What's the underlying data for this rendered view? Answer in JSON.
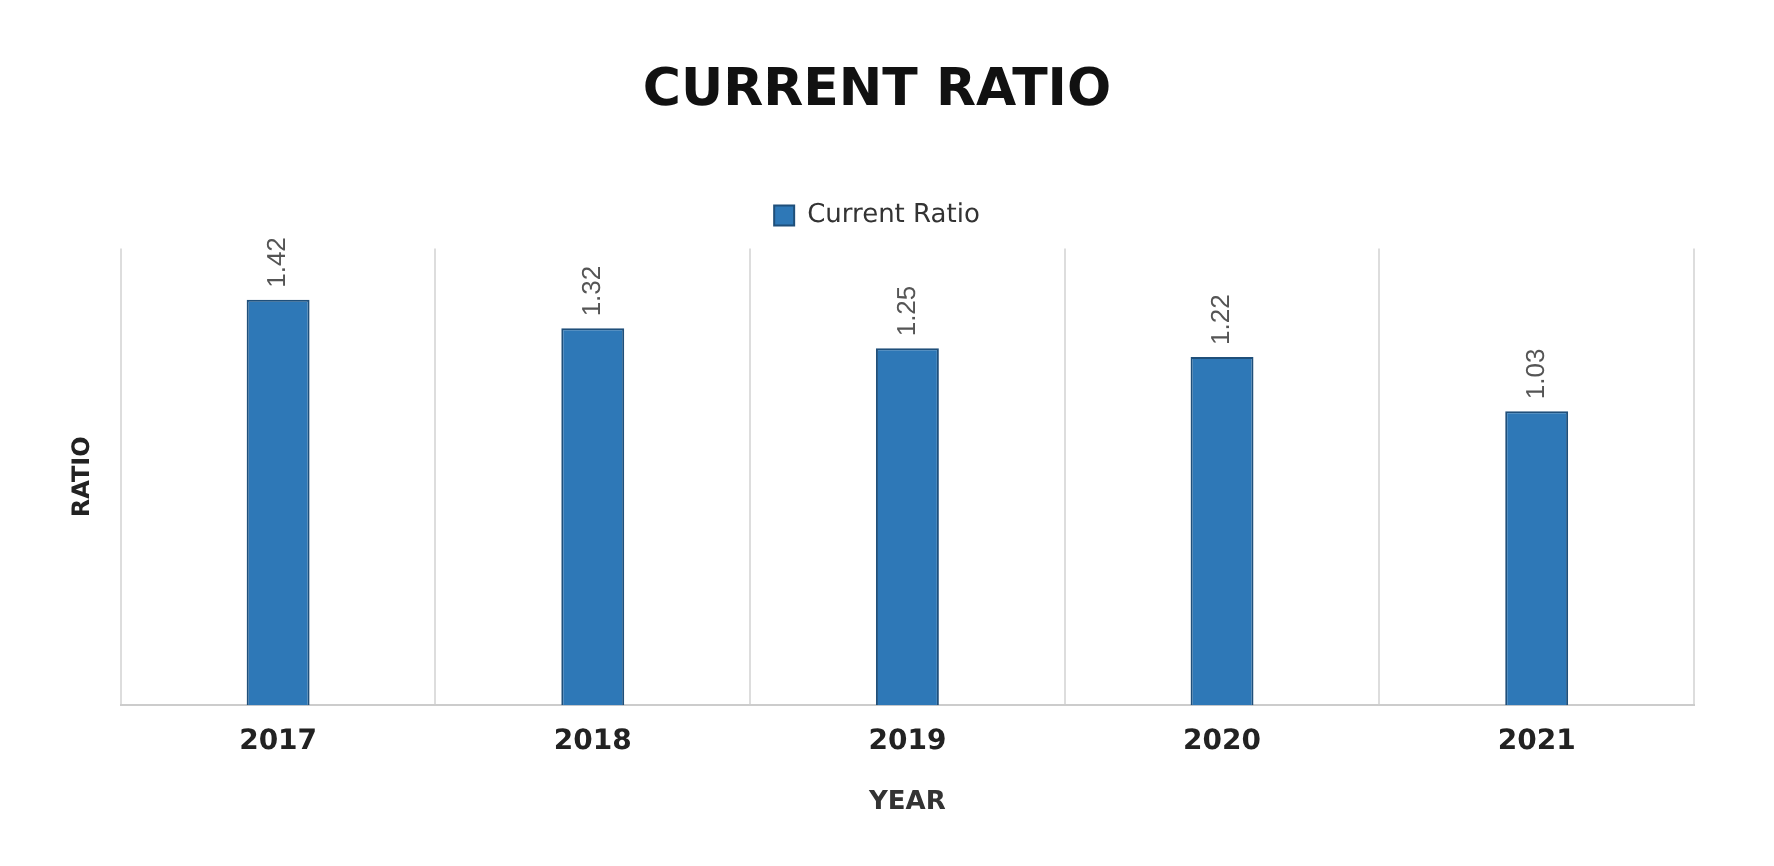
{
  "chart_data": {
    "type": "bar",
    "title": "CURRENT RATIO",
    "xlabel": "YEAR",
    "ylabel": "RATIO",
    "categories": [
      "2017",
      "2018",
      "2019",
      "2020",
      "2021"
    ],
    "series": [
      {
        "name": "Current Ratio",
        "color": "#2e78b7",
        "values": [
          1.42,
          1.32,
          1.25,
          1.22,
          1.03
        ]
      }
    ],
    "ylim": [
      0,
      1.6
    ],
    "tick_labels": "x",
    "grid": "x",
    "legend": "top",
    "data_labels": true
  }
}
